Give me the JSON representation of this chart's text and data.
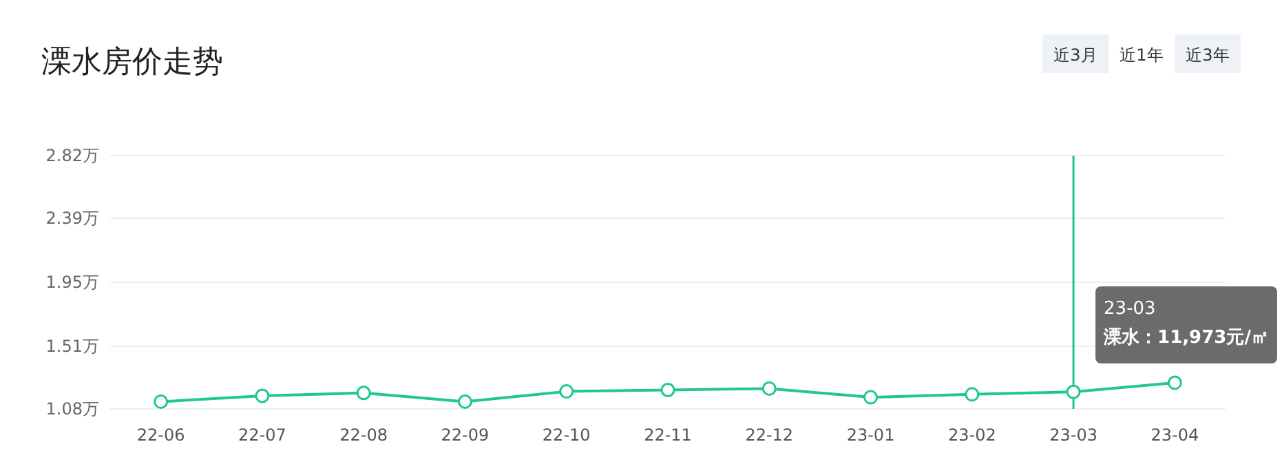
{
  "chart_data": {
    "type": "line",
    "title": "溧水房价走势",
    "categories": [
      "22-06",
      "22-07",
      "22-08",
      "22-09",
      "22-10",
      "22-11",
      "22-12",
      "23-01",
      "23-02",
      "23-03",
      "23-04"
    ],
    "series": [
      {
        "color": "#1fc98a",
        "values": [
          1.13,
          1.17,
          1.19,
          1.13,
          1.2,
          1.21,
          1.22,
          1.16,
          1.18,
          1.197,
          1.26
        ]
      }
    ],
    "ylim": [
      1.08,
      2.82
    ],
    "yticks": [
      {
        "value": 1.08,
        "label": "1.08万"
      },
      {
        "value": 1.51,
        "label": "1.51万"
      },
      {
        "value": 1.95,
        "label": "1.95万"
      },
      {
        "value": 2.39,
        "label": "2.39万"
      },
      {
        "value": 2.82,
        "label": "2.82万"
      }
    ],
    "grid": "y",
    "marker": "circle",
    "line_style": "solid",
    "ref_lines": [
      {
        "axis": "x",
        "value": "23-03",
        "color": "#1fc98a"
      }
    ],
    "annotations": [
      "23-03",
      "溧水：11,973元/㎡",
      "近3月",
      "近1年",
      "近3年"
    ]
  }
}
